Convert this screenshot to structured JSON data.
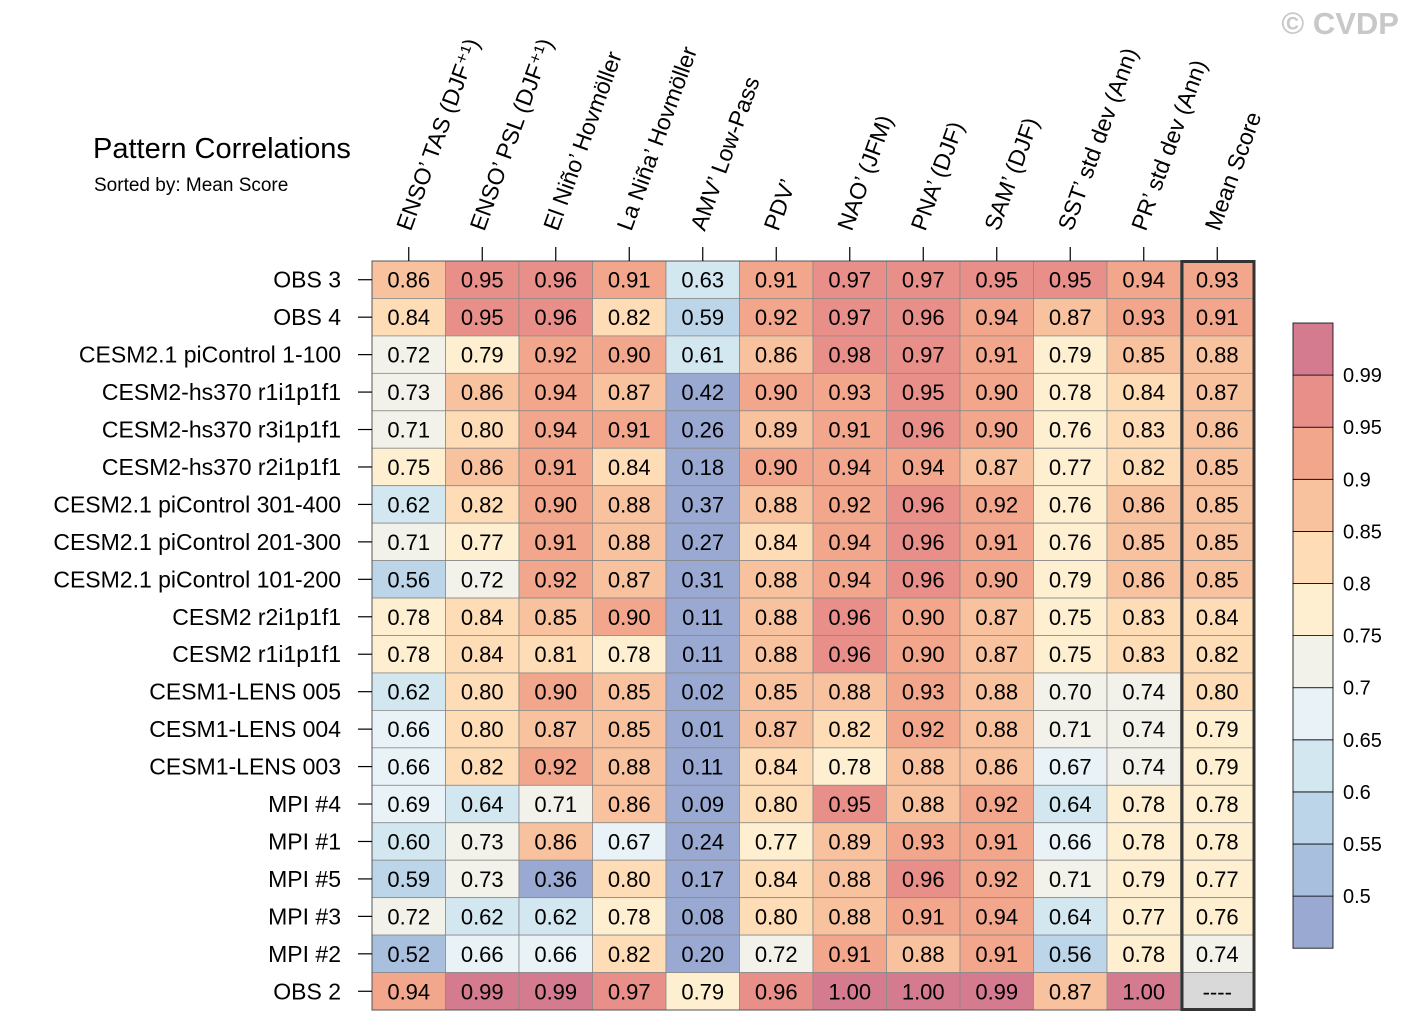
{
  "chart_data": {
    "type": "heatmap",
    "title": "Pattern Correlations",
    "subtitle": "Sorted by: Mean Score",
    "credit": "© CVDP",
    "columns": [
      "ENSO’ TAS (DJF⁺¹)",
      "ENSO’ PSL (DJF⁺¹)",
      "El Niño’ Hovmöller",
      "La Niña’ Hovmöller",
      "AMV’ Low-Pass",
      "PDV’",
      "NAO’ (JFM)",
      "PNA’ (DJF)",
      "SAM’ (DJF)",
      "SST’ std dev (Ann)",
      "PR’ std dev (Ann)",
      "Mean Score"
    ],
    "rows": [
      {
        "label": "OBS 3",
        "values": [
          "0.86",
          "0.95",
          "0.96",
          "0.91",
          "0.63",
          "0.91",
          "0.97",
          "0.97",
          "0.95",
          "0.95",
          "0.94",
          "0.93"
        ]
      },
      {
        "label": "OBS 4",
        "values": [
          "0.84",
          "0.95",
          "0.96",
          "0.82",
          "0.59",
          "0.92",
          "0.97",
          "0.96",
          "0.94",
          "0.87",
          "0.93",
          "0.91"
        ]
      },
      {
        "label": "CESM2.1 piControl 1-100",
        "values": [
          "0.72",
          "0.79",
          "0.92",
          "0.90",
          "0.61",
          "0.86",
          "0.98",
          "0.97",
          "0.91",
          "0.79",
          "0.85",
          "0.88"
        ]
      },
      {
        "label": "CESM2-hs370 r1i1p1f1",
        "values": [
          "0.73",
          "0.86",
          "0.94",
          "0.87",
          "0.42",
          "0.90",
          "0.93",
          "0.95",
          "0.90",
          "0.78",
          "0.84",
          "0.87"
        ]
      },
      {
        "label": "CESM2-hs370 r3i1p1f1",
        "values": [
          "0.71",
          "0.80",
          "0.94",
          "0.91",
          "0.26",
          "0.89",
          "0.91",
          "0.96",
          "0.90",
          "0.76",
          "0.83",
          "0.86"
        ]
      },
      {
        "label": "CESM2-hs370 r2i1p1f1",
        "values": [
          "0.75",
          "0.86",
          "0.91",
          "0.84",
          "0.18",
          "0.90",
          "0.94",
          "0.94",
          "0.87",
          "0.77",
          "0.82",
          "0.85"
        ]
      },
      {
        "label": "CESM2.1 piControl 301-400",
        "values": [
          "0.62",
          "0.82",
          "0.90",
          "0.88",
          "0.37",
          "0.88",
          "0.92",
          "0.96",
          "0.92",
          "0.76",
          "0.86",
          "0.85"
        ]
      },
      {
        "label": "CESM2.1 piControl 201-300",
        "values": [
          "0.71",
          "0.77",
          "0.91",
          "0.88",
          "0.27",
          "0.84",
          "0.94",
          "0.96",
          "0.91",
          "0.76",
          "0.85",
          "0.85"
        ]
      },
      {
        "label": "CESM2.1 piControl 101-200",
        "values": [
          "0.56",
          "0.72",
          "0.92",
          "0.87",
          "0.31",
          "0.88",
          "0.94",
          "0.96",
          "0.90",
          "0.79",
          "0.86",
          "0.85"
        ]
      },
      {
        "label": "CESM2 r2i1p1f1",
        "values": [
          "0.78",
          "0.84",
          "0.85",
          "0.90",
          "0.11",
          "0.88",
          "0.96",
          "0.90",
          "0.87",
          "0.75",
          "0.83",
          "0.84"
        ]
      },
      {
        "label": "CESM2 r1i1p1f1",
        "values": [
          "0.78",
          "0.84",
          "0.81",
          "0.78",
          "0.11",
          "0.88",
          "0.96",
          "0.90",
          "0.87",
          "0.75",
          "0.83",
          "0.82"
        ]
      },
      {
        "label": "CESM1-LENS 005",
        "values": [
          "0.62",
          "0.80",
          "0.90",
          "0.85",
          "0.02",
          "0.85",
          "0.88",
          "0.93",
          "0.88",
          "0.70",
          "0.74",
          "0.80"
        ]
      },
      {
        "label": "CESM1-LENS 004",
        "values": [
          "0.66",
          "0.80",
          "0.87",
          "0.85",
          "0.01",
          "0.87",
          "0.82",
          "0.92",
          "0.88",
          "0.71",
          "0.74",
          "0.79"
        ]
      },
      {
        "label": "CESM1-LENS 003",
        "values": [
          "0.66",
          "0.82",
          "0.92",
          "0.88",
          "0.11",
          "0.84",
          "0.78",
          "0.88",
          "0.86",
          "0.67",
          "0.74",
          "0.79"
        ]
      },
      {
        "label": "MPI #4",
        "values": [
          "0.69",
          "0.64",
          "0.71",
          "0.86",
          "0.09",
          "0.80",
          "0.95",
          "0.88",
          "0.92",
          "0.64",
          "0.78",
          "0.78"
        ]
      },
      {
        "label": "MPI #1",
        "values": [
          "0.60",
          "0.73",
          "0.86",
          "0.67",
          "0.24",
          "0.77",
          "0.89",
          "0.93",
          "0.91",
          "0.66",
          "0.78",
          "0.78"
        ]
      },
      {
        "label": "MPI #5",
        "values": [
          "0.59",
          "0.73",
          "0.36",
          "0.80",
          "0.17",
          "0.84",
          "0.88",
          "0.96",
          "0.92",
          "0.71",
          "0.79",
          "0.77"
        ]
      },
      {
        "label": "MPI #3",
        "values": [
          "0.72",
          "0.62",
          "0.62",
          "0.78",
          "0.08",
          "0.80",
          "0.88",
          "0.91",
          "0.94",
          "0.64",
          "0.77",
          "0.76"
        ]
      },
      {
        "label": "MPI #2",
        "values": [
          "0.52",
          "0.66",
          "0.66",
          "0.82",
          "0.20",
          "0.72",
          "0.91",
          "0.88",
          "0.91",
          "0.56",
          "0.78",
          "0.74"
        ]
      },
      {
        "label": "OBS 2",
        "values": [
          "0.94",
          "0.99",
          "0.99",
          "0.97",
          "0.79",
          "0.96",
          "1.00",
          "1.00",
          "0.99",
          "0.87",
          "1.00",
          "----"
        ]
      }
    ],
    "colorbar": {
      "levels": [
        0.5,
        0.55,
        0.6,
        0.65,
        0.7,
        0.75,
        0.8,
        0.85,
        0.9,
        0.95,
        0.99
      ],
      "tick_labels": [
        "0.5",
        "0.55",
        "0.6",
        "0.65",
        "0.7",
        "0.75",
        "0.8",
        "0.85",
        "0.9",
        "0.95",
        "0.99"
      ],
      "colors": [
        "#9aa9d2",
        "#a8c0de",
        "#bcd5e8",
        "#d3e7f1",
        "#e9f3f7",
        "#f3f2ea",
        "#fdefd0",
        "#fddcb6",
        "#f9c29e",
        "#f2a68c",
        "#e98f8a",
        "#d47b90"
      ],
      "missing_color": "#d9d9d9"
    }
  }
}
